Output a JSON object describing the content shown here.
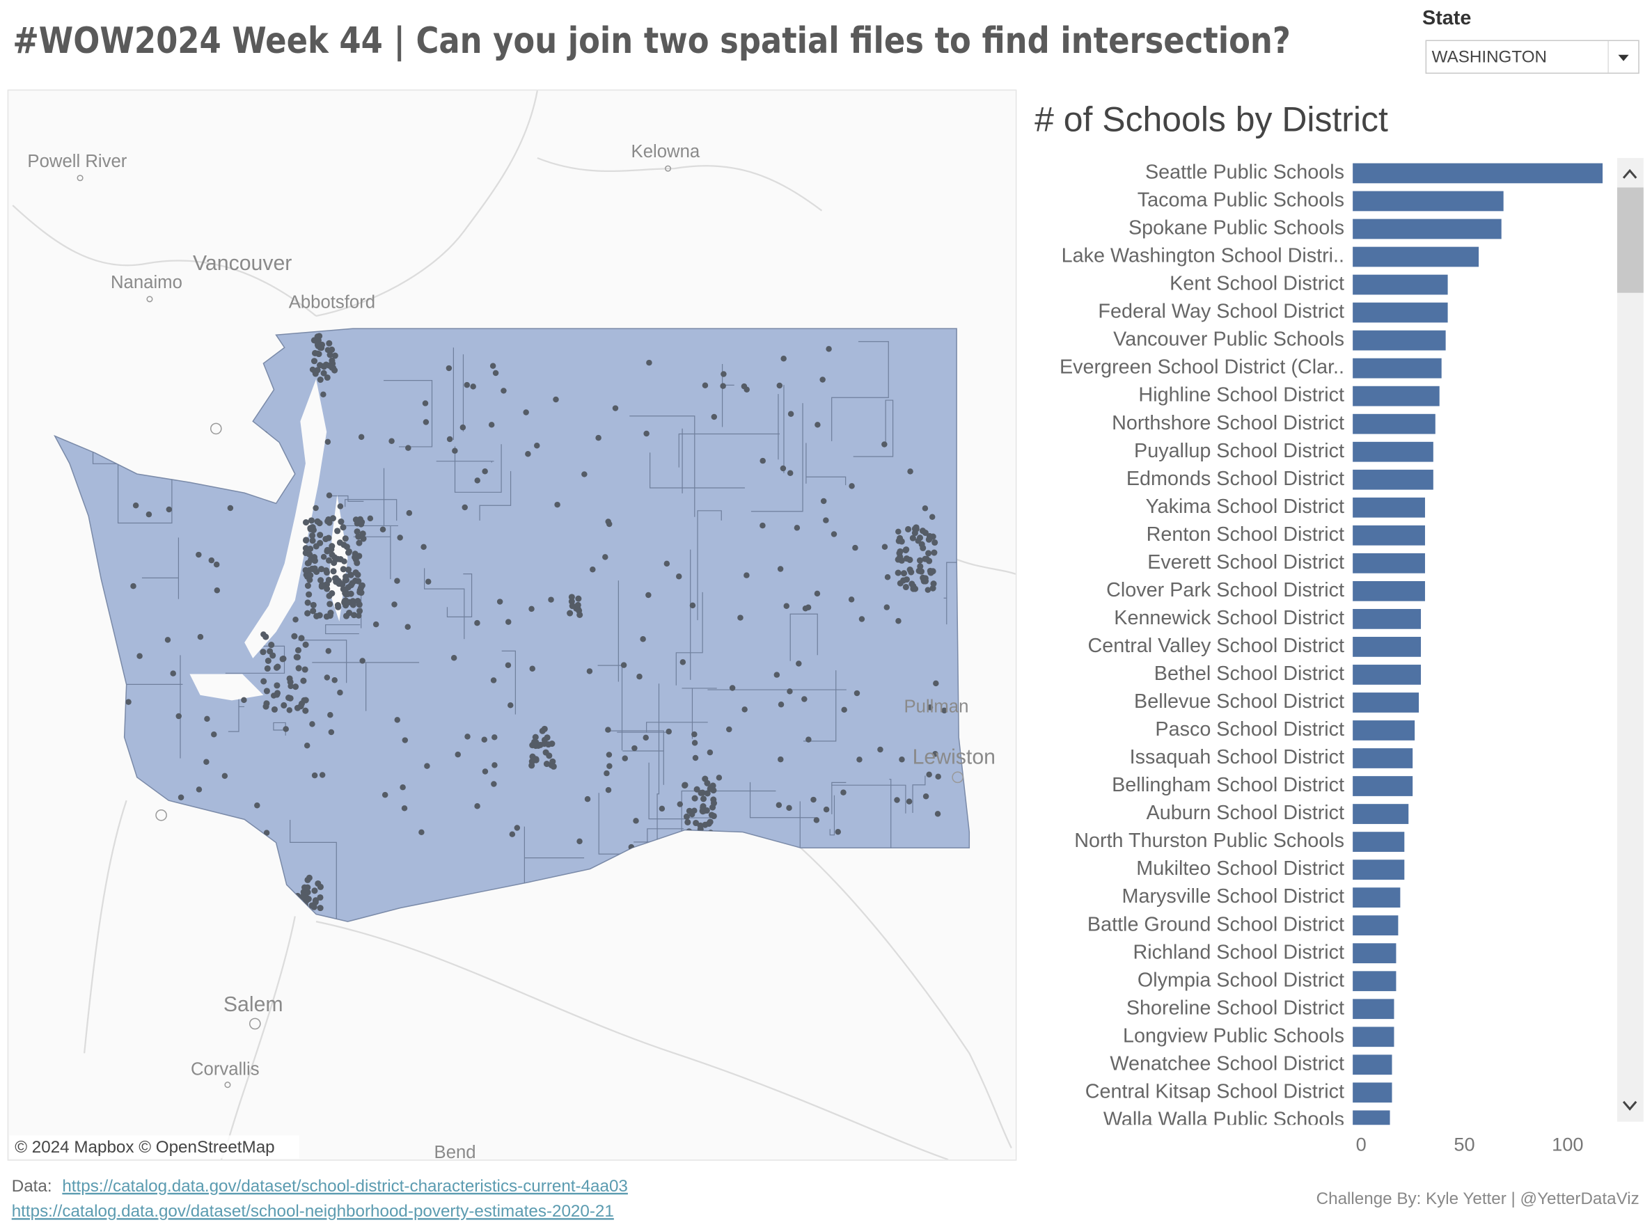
{
  "title": "#WOW2024 Week 44 | Can you join two spatial files to find intersection?",
  "filter": {
    "label": "State",
    "value": "WASHINGTON"
  },
  "map": {
    "labels": [
      "Powell River",
      "Kelowna",
      "Vancouver",
      "Nanaimo",
      "Abbotsford",
      "Salem",
      "Corvallis",
      "Bend",
      "Lewiston",
      "Pullman"
    ],
    "attribution": "© 2024 Mapbox © OpenStreetMap"
  },
  "chart_data": {
    "type": "bar",
    "orientation": "horizontal",
    "title": "# of Schools by District",
    "categories": [
      "Seattle Public Schools",
      "Tacoma Public Schools",
      "Spokane Public Schools",
      "Lake Washington School Distri..",
      "Kent School District",
      "Federal Way School District",
      "Vancouver Public Schools",
      "Evergreen School District (Clar..",
      "Highline School District",
      "Northshore School District",
      "Puyallup School District",
      "Edmonds School District",
      "Yakima School District",
      "Renton School District",
      "Everett School District",
      "Clover Park School District",
      "Kennewick School District",
      "Central Valley School District",
      "Bethel School District",
      "Bellevue School District",
      "Pasco School District",
      "Issaquah School District",
      "Bellingham School District",
      "Auburn School District",
      "North Thurston Public Schools",
      "Mukilteo School District",
      "Marysville School District",
      "Battle Ground School District",
      "Richland School District",
      "Olympia School District",
      "Shoreline School District",
      "Longview Public Schools",
      "Wenatchee School District",
      "Central Kitsap School District",
      "Walla Walla Public Schools"
    ],
    "values": [
      121,
      73,
      72,
      61,
      46,
      46,
      45,
      43,
      42,
      40,
      39,
      39,
      35,
      35,
      35,
      35,
      33,
      33,
      33,
      32,
      30,
      29,
      29,
      27,
      25,
      25,
      23,
      22,
      21,
      21,
      20,
      20,
      19,
      19,
      18
    ],
    "color": "#4f72a3",
    "xlim": [
      0,
      125
    ],
    "xticks": [
      0,
      50,
      100
    ]
  },
  "footer": {
    "data_label": "Data:",
    "links": [
      "https://catalog.data.gov/dataset/school-district-characteristics-current-4aa03",
      "https://catalog.data.gov/dataset/school-neighborhood-poverty-estimates-2020-21"
    ],
    "credit": "Challenge By: Kyle Yetter | @YetterDataViz"
  }
}
